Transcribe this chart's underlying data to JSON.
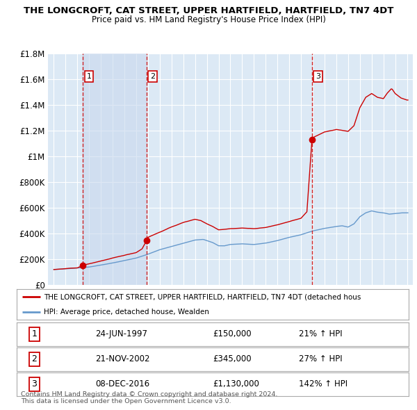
{
  "title": "THE LONGCROFT, CAT STREET, UPPER HARTFIELD, HARTFIELD, TN7 4DT",
  "subtitle": "Price paid vs. HM Land Registry's House Price Index (HPI)",
  "bg_color": "#dce9f5",
  "sale_dates": [
    1997.48,
    2002.89,
    2016.93
  ],
  "sale_prices": [
    150000,
    345000,
    1130000
  ],
  "sale_labels": [
    "1",
    "2",
    "3"
  ],
  "legend_line1": "THE LONGCROFT, CAT STREET, UPPER HARTFIELD, HARTFIELD, TN7 4DT (detached hous",
  "legend_line2": "HPI: Average price, detached house, Wealden",
  "table_rows": [
    [
      "1",
      "24-JUN-1997",
      "£150,000",
      "21% ↑ HPI"
    ],
    [
      "2",
      "21-NOV-2002",
      "£345,000",
      "27% ↑ HPI"
    ],
    [
      "3",
      "08-DEC-2016",
      "£1,130,000",
      "142% ↑ HPI"
    ]
  ],
  "footnote1": "Contains HM Land Registry data © Crown copyright and database right 2024.",
  "footnote2": "This data is licensed under the Open Government Licence v3.0.",
  "xmin": 1994.5,
  "xmax": 2025.5,
  "ymin": 0,
  "ymax": 1800000,
  "yticks": [
    0,
    200000,
    400000,
    600000,
    800000,
    1000000,
    1200000,
    1400000,
    1600000,
    1800000
  ],
  "ytick_labels": [
    "£0",
    "£200K",
    "£400K",
    "£600K",
    "£800K",
    "£1M",
    "£1.2M",
    "£1.4M",
    "£1.6M",
    "£1.8M"
  ],
  "red_line_color": "#cc0000",
  "blue_line_color": "#6699cc",
  "dashed_color": "#cc0000",
  "shade_color": "#c8d8ee"
}
